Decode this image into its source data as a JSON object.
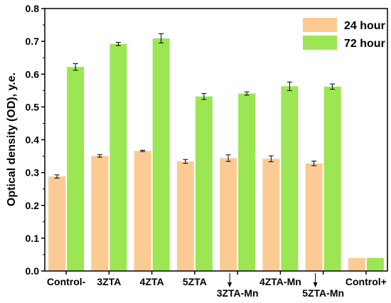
{
  "chart_data": {
    "type": "bar",
    "title": "",
    "xlabel": "",
    "ylabel": "Optical density (OD), y.e.",
    "ylim": [
      0,
      0.8
    ],
    "yticks": [
      "0.0",
      "0.1",
      "0.2",
      "0.3",
      "0.4",
      "0.5",
      "0.6",
      "0.7",
      "0.8"
    ],
    "categories": [
      "Control-",
      "3ZTA",
      "4ZTA",
      "5ZTA",
      "3ZTA-Mn",
      "4ZTA-Mn",
      "5ZTA-Mn",
      "Control+"
    ],
    "grid": false,
    "legend_position": "top-right",
    "series": [
      {
        "name": "24 hour",
        "color": "#FCCB93",
        "values": [
          0.288,
          0.351,
          0.366,
          0.334,
          0.344,
          0.342,
          0.328,
          0.04
        ],
        "errors": [
          0.005,
          0.004,
          0.002,
          0.006,
          0.01,
          0.009,
          0.007,
          null
        ]
      },
      {
        "name": "72 hour",
        "color": "#9CE653",
        "values": [
          0.622,
          0.692,
          0.709,
          0.532,
          0.541,
          0.563,
          0.562,
          0.04
        ],
        "errors": [
          0.01,
          0.005,
          0.014,
          0.009,
          0.005,
          0.013,
          0.008,
          null
        ]
      }
    ]
  }
}
